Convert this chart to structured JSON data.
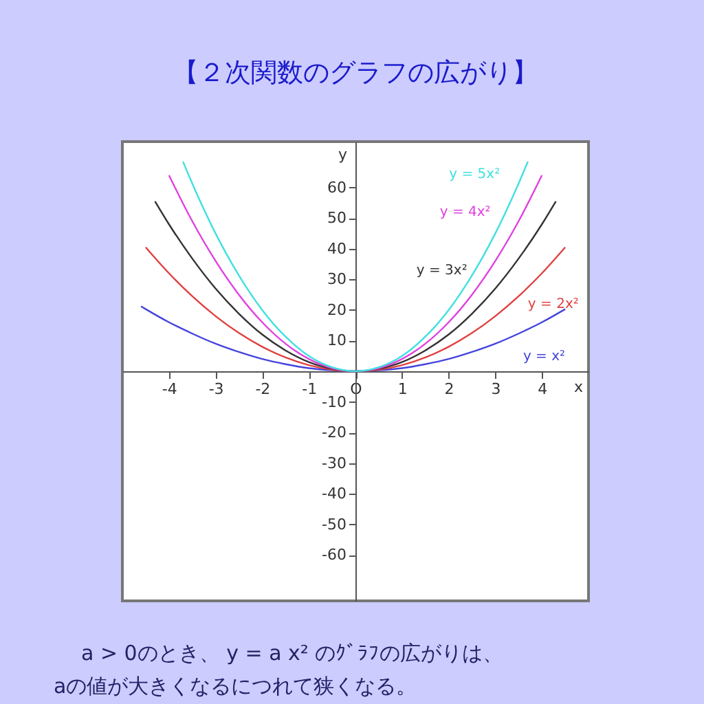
{
  "chart_data": {
    "type": "line",
    "title": "【２次関数のグラフの広がり】",
    "xlabel": "x",
    "ylabel": "y",
    "xlim": [
      -5,
      5
    ],
    "ylim": [
      -75,
      75
    ],
    "xticks": [
      -4,
      -3,
      -2,
      -1,
      {
        "value": 0,
        "label": "O"
      },
      1,
      2,
      3,
      4
    ],
    "yticks": [
      -60,
      -50,
      -40,
      -30,
      -20,
      -10,
      10,
      20,
      30,
      40,
      50,
      60
    ],
    "grid": false,
    "marker": "none",
    "line_style": "solid",
    "annotations": [
      "a > 0のとき、 y = a x² のｸﾞﾗﾌの広がりは、",
      "aの値が大きくなるにつれて狭くなる。"
    ],
    "series": [
      {
        "name": "y = x²",
        "color": "#4444dd",
        "x": [
          -4.6,
          -4.5,
          -4,
          -3.5,
          -3,
          -2.5,
          -2,
          -1.5,
          -1,
          -0.5,
          0,
          0.5,
          1,
          1.5,
          2,
          2.5,
          3,
          3.5,
          4,
          4.5
        ],
        "values": [
          21.2,
          20.3,
          16,
          12.3,
          9,
          6.3,
          4,
          2.3,
          1,
          0.3,
          0,
          0.3,
          1,
          2.3,
          4,
          6.3,
          9,
          12.3,
          16,
          20.3
        ]
      },
      {
        "name": "y = 2x²",
        "color": "#e04040",
        "x": [
          -4.5,
          -4,
          -3.5,
          -3,
          -2.5,
          -2,
          -1.5,
          -1,
          -0.5,
          0,
          0.5,
          1,
          1.5,
          2,
          2.5,
          3,
          3.5,
          4,
          4.5
        ],
        "values": [
          40.5,
          32,
          24.5,
          18,
          12.5,
          8,
          4.5,
          2,
          0.5,
          0,
          0.5,
          2,
          4.5,
          8,
          12.5,
          18,
          24.5,
          32,
          40.5
        ]
      },
      {
        "name": "y = 3x²",
        "color": "#333333",
        "x": [
          -4.3,
          -4,
          -3.5,
          -3,
          -2.5,
          -2,
          -1.5,
          -1,
          -0.5,
          0,
          0.5,
          1,
          1.5,
          2,
          2.5,
          3,
          3.5,
          4,
          4.3
        ],
        "values": [
          55.5,
          48,
          36.8,
          27,
          18.8,
          12,
          6.8,
          3,
          0.8,
          0,
          0.8,
          3,
          6.8,
          12,
          18.8,
          27,
          36.8,
          48,
          55.5
        ]
      },
      {
        "name": "y = 4x²",
        "color": "#e040e0",
        "x": [
          -4,
          -3.5,
          -3,
          -2.5,
          -2,
          -1.5,
          -1,
          -0.5,
          0,
          0.5,
          1,
          1.5,
          2,
          2.5,
          3,
          3.5,
          4
        ],
        "values": [
          64,
          49,
          36,
          25,
          16,
          9,
          4,
          1,
          0,
          1,
          4,
          9,
          16,
          25,
          36,
          49,
          64
        ]
      },
      {
        "name": "y = 5x²",
        "color": "#40e0e0",
        "x": [
          -3.7,
          -3.5,
          -3,
          -2.5,
          -2,
          -1.5,
          -1,
          -0.5,
          0,
          0.5,
          1,
          1.5,
          2,
          2.5,
          3,
          3.5,
          3.7
        ],
        "values": [
          68.5,
          61.3,
          45,
          31.3,
          20,
          11.3,
          5,
          1.3,
          0,
          1.3,
          5,
          11.3,
          20,
          31.3,
          45,
          61.3,
          68.5
        ]
      }
    ]
  }
}
